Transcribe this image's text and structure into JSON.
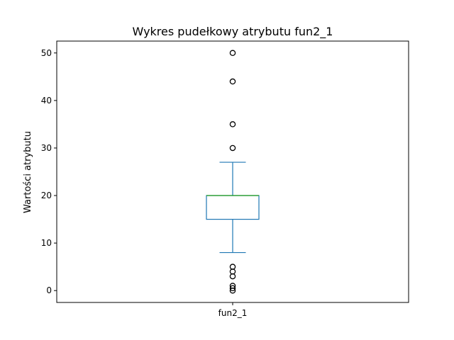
{
  "chart_data": {
    "type": "boxplot",
    "title": "Wykres pudełkowy atrybutu fun2_1",
    "xlabel": "",
    "ylabel": "Wartości atrybutu",
    "categories": [
      "fun2_1"
    ],
    "ylim": [
      -2.5,
      52.5
    ],
    "yticks": [
      0,
      10,
      20,
      30,
      40,
      50
    ],
    "grid": false,
    "boxes": [
      {
        "name": "fun2_1",
        "whisker_low": 8,
        "q1": 15,
        "median": 20,
        "q3": 20,
        "whisker_high": 27,
        "outliers": [
          0,
          0.5,
          1,
          3,
          4,
          5,
          30,
          35,
          44,
          50
        ]
      }
    ],
    "colors": {
      "box": "#1f77b4",
      "median": "#2ca02c",
      "outlier": "#000000"
    }
  }
}
